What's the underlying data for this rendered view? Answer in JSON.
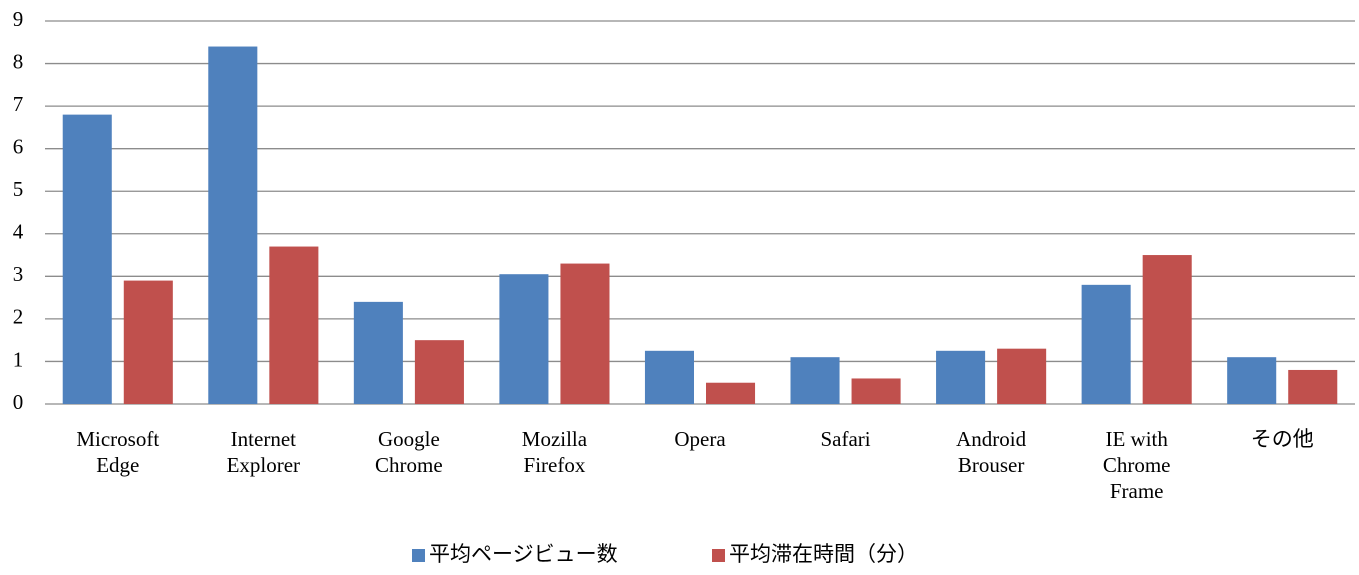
{
  "chart_data": {
    "type": "bar",
    "categories": [
      "Microsoft\nEdge",
      "Internet\nExplorer",
      "Google\nChrome",
      "Mozilla\nFirefox",
      "Opera",
      "Safari",
      "Android\nBrouser",
      "IE with\nChrome\nFrame",
      "その他"
    ],
    "series": [
      {
        "name": "平均ページビュー数",
        "color": "#4f81bd",
        "values": [
          6.8,
          8.4,
          2.4,
          3.05,
          1.25,
          1.1,
          1.25,
          2.8,
          1.1
        ]
      },
      {
        "name": "平均滞在時間（分）",
        "color": "#c0504d",
        "values": [
          2.9,
          3.7,
          1.5,
          3.3,
          0.5,
          0.6,
          1.3,
          3.5,
          0.8
        ]
      }
    ],
    "ylim": [
      0,
      9
    ],
    "yticks": [
      0,
      1,
      2,
      3,
      4,
      5,
      6,
      7,
      8,
      9
    ],
    "grid": true,
    "legend": "bottom"
  }
}
